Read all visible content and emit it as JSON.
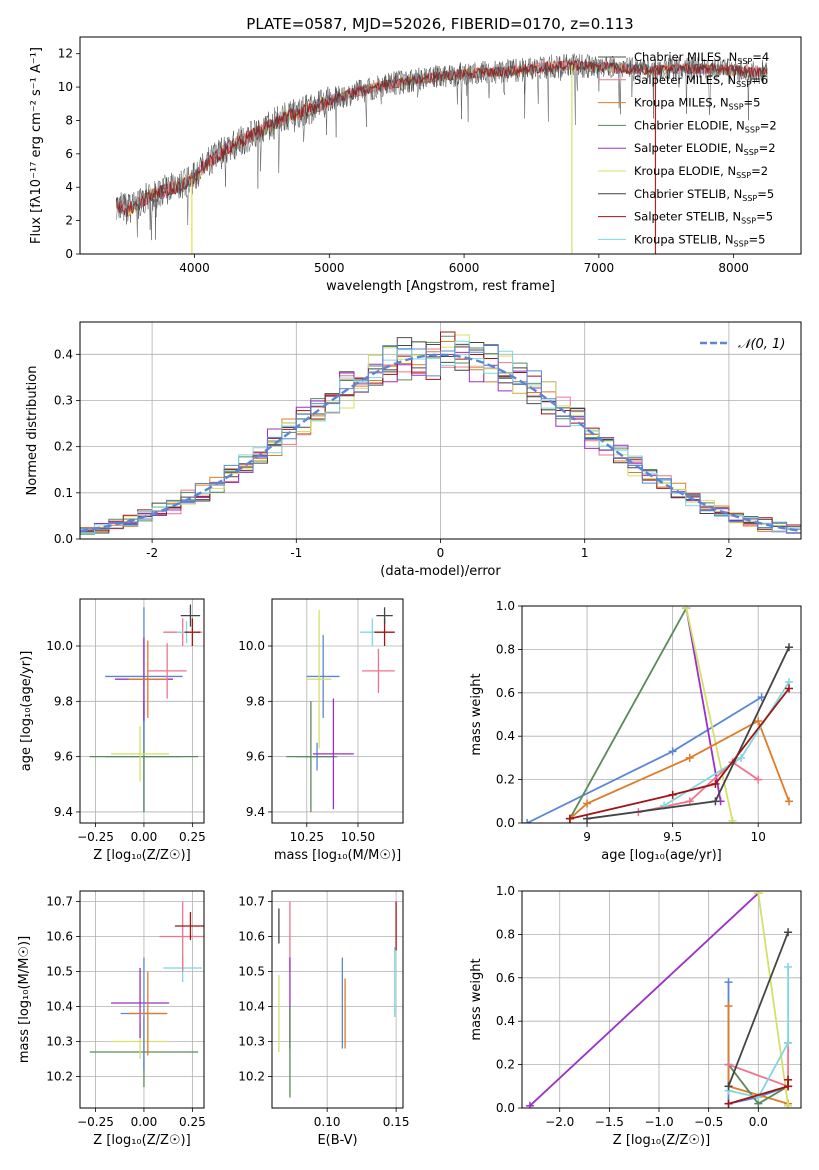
{
  "chart_data": [
    {
      "id": "spectrum",
      "type": "line",
      "title": "PLATE=0587, MJD=52026, FIBERID=0170, z=0.113",
      "xlabel": "wavelength [Angstrom, rest frame]",
      "ylabel": "Flux [fλ10⁻¹⁷ erg cm⁻² s⁻¹ A⁻¹]",
      "xlim": [
        3150,
        8500
      ],
      "ylim": [
        0,
        13
      ],
      "xticks": [
        4000,
        5000,
        6000,
        7000,
        8000
      ],
      "yticks": [
        0,
        2,
        4,
        6,
        8,
        10,
        12
      ],
      "legend_position": "upper right",
      "continuum": {
        "x": [
          3420,
          3500,
          3700,
          3900,
          4000,
          4100,
          4300,
          4500,
          4700,
          4900,
          5000,
          5200,
          5400,
          5600,
          5800,
          6000,
          6200,
          6400,
          6600,
          6800,
          7000,
          7200,
          7400,
          7600,
          7800,
          8000,
          8150,
          8250
        ],
        "y": [
          3.0,
          2.6,
          3.6,
          4.1,
          4.6,
          5.5,
          6.6,
          7.4,
          8.3,
          8.8,
          9.2,
          9.7,
          10.1,
          10.4,
          10.6,
          10.8,
          10.9,
          11.0,
          11.2,
          11.3,
          11.2,
          11.1,
          11.0,
          11.1,
          11.1,
          11.0,
          10.9,
          10.9
        ]
      },
      "spikes": [
        {
          "x": 3980,
          "color": "#e2e24a"
        },
        {
          "x": 6800,
          "color": "#d4e06a"
        },
        {
          "x": 7420,
          "color": "#b22222"
        }
      ],
      "series": [
        {
          "name": "Chabrier MILES, N_SSP=4",
          "color": "#4d4d4d"
        },
        {
          "name": "Salpeter MILES, N_SSP=6",
          "color": "#f0738e"
        },
        {
          "name": "Kroupa MILES, N_SSP=5",
          "color": "#e07b27"
        },
        {
          "name": "Chabrier ELODIE, N_SSP=2",
          "color": "#5a8a5a"
        },
        {
          "name": "Salpeter ELODIE, N_SSP=2",
          "color": "#9b30c8"
        },
        {
          "name": "Kroupa ELODIE, N_SSP=2",
          "color": "#d4e06a"
        },
        {
          "name": "Chabrier STELIB, N_SSP=5",
          "color": "#444444"
        },
        {
          "name": "Salpeter STELIB, N_SSP=5",
          "color": "#a01515"
        },
        {
          "name": "Kroupa STELIB, N_SSP=5",
          "color": "#7fd8e0"
        }
      ]
    },
    {
      "id": "residuals",
      "type": "histogram",
      "xlabel": "(data-model)/error",
      "ylabel": "Normed distribution",
      "xlim": [
        -2.5,
        2.5
      ],
      "ylim": [
        0,
        0.47
      ],
      "xticks": [
        -2,
        -1,
        0,
        1,
        2
      ],
      "yticks": [
        0.0,
        0.1,
        0.2,
        0.3,
        0.4
      ],
      "legend_position": "upper right",
      "gaussian_label": "𝒩(0, 1)",
      "gaussian_color": "#5b86d6",
      "bin_width": 0.1,
      "hist_colors": [
        "#4d4d4d",
        "#f0738e",
        "#e07b27",
        "#5a8a5a",
        "#9b30c8",
        "#d4e06a",
        "#444444",
        "#a01515",
        "#7fd8e0",
        "#5b86d6"
      ]
    },
    {
      "id": "age-vs-Z",
      "type": "errorbar",
      "xlabel": "Z [log₁₀(Z/Z☉)]",
      "ylabel": "age  [log₁₀(age/yr)]",
      "xlim": [
        -0.33,
        0.31
      ],
      "ylim": [
        9.36,
        10.17
      ],
      "xticks": [
        -0.25,
        0.0,
        0.25
      ],
      "xticklabels": [
        "−0.25",
        "0.00",
        "0.25"
      ],
      "yticks": [
        9.4,
        9.6,
        9.8,
        10.0
      ],
      "points": [
        {
          "x": 0.0,
          "xerr": 0.2,
          "y": 9.6,
          "yerr": 0.2,
          "color": "#5b86d6"
        },
        {
          "x": 0.0,
          "xerr": 0.28,
          "y": 9.6,
          "yerr": 0.2,
          "color": "#5a8a5a"
        },
        {
          "x": -0.02,
          "xerr": 0.15,
          "y": 9.61,
          "yerr": 0.1,
          "color": "#d4e06a"
        },
        {
          "x": 0.0,
          "xerr": 0.2,
          "y": 9.89,
          "yerr": 0.25,
          "color": "#5b86d6"
        },
        {
          "x": 0.0,
          "xerr": 0.15,
          "y": 9.88,
          "yerr": 0.15,
          "color": "#9b30c8"
        },
        {
          "x": 0.02,
          "xerr": 0.1,
          "y": 9.88,
          "yerr": 0.14,
          "color": "#e07b27"
        },
        {
          "x": 0.12,
          "xerr": 0.1,
          "y": 9.91,
          "yerr": 0.1,
          "color": "#f0738e"
        },
        {
          "x": 0.2,
          "xerr": 0.1,
          "y": 10.05,
          "yerr": 0.05,
          "color": "#f0738e"
        },
        {
          "x": 0.22,
          "xerr": 0.05,
          "y": 10.05,
          "yerr": 0.04,
          "color": "#7fd8e0"
        },
        {
          "x": 0.25,
          "xerr": 0.04,
          "y": 10.05,
          "yerr": 0.05,
          "color": "#a01515"
        },
        {
          "x": 0.24,
          "xerr": 0.05,
          "y": 10.11,
          "yerr": 0.04,
          "color": "#444444"
        }
      ]
    },
    {
      "id": "age-vs-mass",
      "type": "errorbar",
      "xlabel": "mass [log₁₀(M/M☉)]",
      "ylabel": "",
      "xlim": [
        10.08,
        10.72
      ],
      "ylim": [
        9.36,
        10.17
      ],
      "xticks": [
        10.25,
        10.5
      ],
      "xticklabels": [
        "10.25",
        "10.50"
      ],
      "yticks": [
        9.4,
        9.6,
        9.8,
        10.0
      ],
      "points": [
        {
          "x": 10.3,
          "xerr": 0.1,
          "y": 9.6,
          "yerr": 0.05,
          "color": "#5b86d6"
        },
        {
          "x": 10.27,
          "xerr": 0.12,
          "y": 9.6,
          "yerr": 0.2,
          "color": "#5a8a5a"
        },
        {
          "x": 10.38,
          "xerr": 0.1,
          "y": 9.61,
          "yerr": 0.2,
          "color": "#9b30c8"
        },
        {
          "x": 10.33,
          "xerr": 0.08,
          "y": 9.89,
          "yerr": 0.15,
          "color": "#5b86d6"
        },
        {
          "x": 10.31,
          "xerr": 0.06,
          "y": 9.88,
          "yerr": 0.25,
          "color": "#d4e06a"
        },
        {
          "x": 10.6,
          "xerr": 0.08,
          "y": 9.91,
          "yerr": 0.08,
          "color": "#f0738e"
        },
        {
          "x": 10.57,
          "xerr": 0.06,
          "y": 10.05,
          "yerr": 0.05,
          "color": "#7fd8e0"
        },
        {
          "x": 10.63,
          "xerr": 0.05,
          "y": 10.05,
          "yerr": 0.05,
          "color": "#a01515"
        },
        {
          "x": 10.63,
          "xerr": 0.04,
          "y": 10.11,
          "yerr": 0.03,
          "color": "#444444"
        }
      ]
    },
    {
      "id": "weight-vs-age",
      "type": "line",
      "xlabel": "age  [log₁₀(age/yr)]",
      "ylabel": "mass weight",
      "xlim": [
        8.62,
        10.25
      ],
      "ylim": [
        0,
        1.0
      ],
      "xticks": [
        9.0,
        9.5,
        10.0
      ],
      "yticks": [
        0.0,
        0.2,
        0.4,
        0.6,
        0.8,
        1.0
      ],
      "series": [
        {
          "color": "#5b86d6",
          "x": [
            8.65,
            9.5,
            10.02
          ],
          "y": [
            0.0,
            0.33,
            0.58
          ]
        },
        {
          "color": "#5a8a5a",
          "x": [
            8.9,
            9.58
          ],
          "y": [
            0.02,
            0.99
          ]
        },
        {
          "color": "#9b30c8",
          "x": [
            9.58,
            9.78
          ],
          "y": [
            0.99,
            0.1
          ]
        },
        {
          "color": "#d4e06a",
          "x": [
            9.58,
            9.85
          ],
          "y": [
            0.99,
            0.01
          ]
        },
        {
          "color": "#e07b27",
          "x": [
            8.9,
            9.0,
            9.6,
            10.0,
            10.18
          ],
          "y": [
            0.02,
            0.09,
            0.3,
            0.47,
            0.1
          ]
        },
        {
          "color": "#f0738e",
          "x": [
            9.3,
            9.6,
            9.85,
            10.0
          ],
          "y": [
            0.05,
            0.1,
            0.28,
            0.2
          ]
        },
        {
          "color": "#7fd8e0",
          "x": [
            9.45,
            9.9,
            10.18
          ],
          "y": [
            0.08,
            0.3,
            0.65
          ]
        },
        {
          "color": "#444444",
          "x": [
            9.0,
            9.75,
            10.18
          ],
          "y": [
            0.02,
            0.1,
            0.81
          ]
        },
        {
          "color": "#a01515",
          "x": [
            8.9,
            9.5,
            9.75,
            10.18
          ],
          "y": [
            0.02,
            0.13,
            0.18,
            0.62
          ]
        }
      ]
    },
    {
      "id": "mass-vs-Z",
      "type": "errorbar",
      "xlabel": "Z [log₁₀(Z/Z☉)]",
      "ylabel": "mass [log₁₀(M/M☉)]",
      "xlim": [
        -0.33,
        0.31
      ],
      "ylim": [
        10.11,
        10.73
      ],
      "xticks": [
        -0.25,
        0.0,
        0.25
      ],
      "xticklabels": [
        "−0.25",
        "0.00",
        "0.25"
      ],
      "yticks": [
        10.2,
        10.3,
        10.4,
        10.5,
        10.6,
        10.7
      ],
      "points": [
        {
          "x": 0.0,
          "xerr": 0.28,
          "y": 10.27,
          "yerr": 0.1,
          "color": "#5a8a5a"
        },
        {
          "x": -0.02,
          "xerr": 0.15,
          "y": 10.3,
          "yerr": 0.05,
          "color": "#d4e06a"
        },
        {
          "x": -0.02,
          "xerr": 0.15,
          "y": 10.41,
          "yerr": 0.1,
          "color": "#9b30c8"
        },
        {
          "x": 0.0,
          "xerr": 0.12,
          "y": 10.38,
          "yerr": 0.16,
          "color": "#5b86d6"
        },
        {
          "x": 0.02,
          "xerr": 0.1,
          "y": 10.38,
          "yerr": 0.12,
          "color": "#e07b27"
        },
        {
          "x": 0.2,
          "xerr": 0.1,
          "y": 10.51,
          "yerr": 0.04,
          "color": "#7fd8e0"
        },
        {
          "x": 0.2,
          "xerr": 0.12,
          "y": 10.6,
          "yerr": 0.1,
          "color": "#f0738e"
        },
        {
          "x": 0.24,
          "xerr": 0.08,
          "y": 10.63,
          "yerr": 0.04,
          "color": "#a01515"
        }
      ]
    },
    {
      "id": "mass-vs-ebv",
      "type": "errorbar",
      "xlabel": "E(B-V)",
      "ylabel": "",
      "xlim": [
        0.06,
        0.155
      ],
      "ylim": [
        10.11,
        10.73
      ],
      "xticks": [
        0.1,
        0.15
      ],
      "xticklabels": [
        "0.10",
        "0.15"
      ],
      "yticks": [
        10.2,
        10.3,
        10.4,
        10.5,
        10.6,
        10.7
      ],
      "points": [
        {
          "x": 0.065,
          "y": 10.63,
          "yerr": 0.05,
          "color": "#444444"
        },
        {
          "x": 0.065,
          "y": 10.38,
          "yerr": 0.11,
          "color": "#d4e06a"
        },
        {
          "x": 0.073,
          "y": 10.6,
          "yerr": 0.1,
          "color": "#f0738e"
        },
        {
          "x": 0.073,
          "y": 10.41,
          "yerr": 0.13,
          "color": "#9b30c8"
        },
        {
          "x": 0.073,
          "y": 10.27,
          "yerr": 0.13,
          "color": "#5a8a5a"
        },
        {
          "x": 0.111,
          "y": 10.41,
          "yerr": 0.13,
          "color": "#5b86d6"
        },
        {
          "x": 0.113,
          "y": 10.38,
          "yerr": 0.1,
          "color": "#e07b27"
        },
        {
          "x": 0.149,
          "y": 10.47,
          "yerr": 0.1,
          "color": "#7fd8e0"
        },
        {
          "x": 0.15,
          "y": 10.63,
          "yerr": 0.07,
          "color": "#a01515"
        }
      ]
    },
    {
      "id": "weight-vs-Z",
      "type": "line",
      "xlabel": "Z [log₁₀(Z/Z☉)]",
      "ylabel": "mass weight",
      "xlim": [
        -2.38,
        0.43
      ],
      "ylim": [
        0,
        1.0
      ],
      "xticks": [
        -2.0,
        -1.5,
        -1.0,
        -0.5,
        0.0
      ],
      "xticklabels": [
        "−2.0",
        "−1.5",
        "−1.0",
        "−0.5",
        "0.0"
      ],
      "yticks": [
        0.0,
        0.2,
        0.4,
        0.6,
        0.8,
        1.0
      ],
      "series": [
        {
          "color": "#9b30c8",
          "x": [
            -2.3,
            0.0
          ],
          "y": [
            0.01,
            0.99
          ]
        },
        {
          "color": "#5b86d6",
          "x": [
            -0.3,
            -0.3,
            0.0,
            0.3
          ],
          "y": [
            0.58,
            0.02,
            0.05,
            0.1
          ]
        },
        {
          "color": "#e07b27",
          "x": [
            -0.3,
            -0.3,
            0.3
          ],
          "y": [
            0.47,
            0.1,
            0.02
          ]
        },
        {
          "color": "#5a8a5a",
          "x": [
            -0.3,
            0.0,
            0.3
          ],
          "y": [
            0.2,
            0.02,
            0.1
          ]
        },
        {
          "color": "#d4e06a",
          "x": [
            0.0,
            0.3
          ],
          "y": [
            0.99,
            0.01
          ]
        },
        {
          "color": "#f0738e",
          "x": [
            -0.3,
            0.3,
            0.3
          ],
          "y": [
            0.2,
            0.1,
            0.3
          ]
        },
        {
          "color": "#7fd8e0",
          "x": [
            -0.3,
            0.0,
            0.3,
            0.3
          ],
          "y": [
            0.08,
            0.05,
            0.3,
            0.65
          ]
        },
        {
          "color": "#444444",
          "x": [
            -0.3,
            0.3
          ],
          "y": [
            0.1,
            0.81
          ]
        },
        {
          "color": "#a01515",
          "x": [
            -0.3,
            0.3,
            0.3
          ],
          "y": [
            0.02,
            0.1,
            0.13
          ]
        }
      ]
    }
  ]
}
